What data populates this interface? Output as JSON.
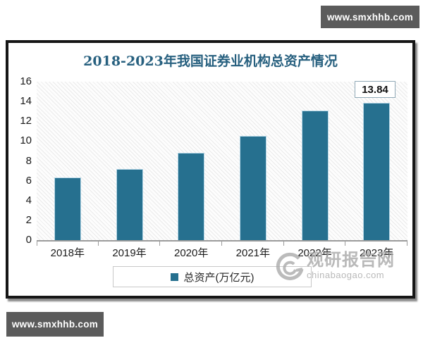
{
  "badges": {
    "top_right": "www.smxhhb.com",
    "bottom_left": "www.smxhhb.com",
    "background_color": "#5b5b5b",
    "text_color": "#ffffff"
  },
  "chart": {
    "title": "2018-2023年我国证券业机构总资产情况",
    "title_color": "#27607f",
    "frame_border_color": "#161616"
  },
  "chart_data": {
    "type": "bar",
    "title": "2018-2023年我国证券业机构总资产情况",
    "categories": [
      "2018年",
      "2019年",
      "2020年",
      "2021年",
      "2022年",
      "2023年"
    ],
    "values": [
      6.3,
      7.2,
      8.8,
      10.5,
      13.1,
      13.84
    ],
    "series_name": "总资产(万亿元)",
    "labeled_points": [
      {
        "category": "2023年",
        "label": "13.84"
      }
    ],
    "ylim": [
      0,
      16
    ],
    "yticks": [
      0,
      2,
      4,
      6,
      8,
      10,
      12,
      14,
      16
    ],
    "xlabel": "",
    "ylabel": "",
    "grid": false,
    "plot_background": "diagonal-hatch",
    "bar_color": "#26708f",
    "bar_border_color": "#b5d6e6",
    "legend_position": "bottom"
  },
  "legend": {
    "label": "总资产(万亿元)",
    "swatch_color": "#26708f"
  },
  "annotation": {
    "value_label": "13.84"
  },
  "watermark": {
    "site_name": "观研报告网",
    "site_url": "chinabaogao.com",
    "color": "#a8a8a8"
  }
}
